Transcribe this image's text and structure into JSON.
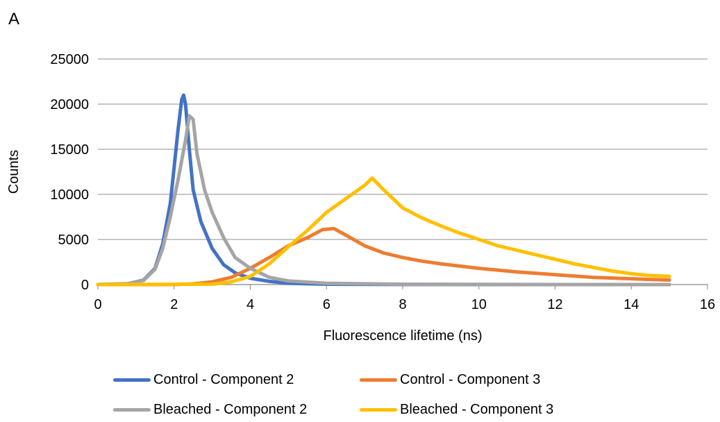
{
  "panel_label": "A",
  "chart_data": {
    "type": "line",
    "title": "",
    "xlabel": "Fluorescence lifetime (ns)",
    "ylabel": "Counts",
    "xlim": [
      0,
      16
    ],
    "ylim": [
      0,
      25000
    ],
    "xticks": [
      0,
      2,
      4,
      6,
      8,
      10,
      12,
      14,
      16
    ],
    "yticks": [
      0,
      5000,
      10000,
      15000,
      20000,
      25000
    ],
    "grid": "horizontal",
    "legend_position": "bottom",
    "series": [
      {
        "name": "Control - Component 2",
        "color": "#4472C4",
        "points": [
          [
            0,
            0
          ],
          [
            0.8,
            100
          ],
          [
            1.2,
            500
          ],
          [
            1.5,
            1800
          ],
          [
            1.7,
            4500
          ],
          [
            1.9,
            9000
          ],
          [
            2.0,
            13000
          ],
          [
            2.1,
            17000
          ],
          [
            2.2,
            20500
          ],
          [
            2.25,
            21000
          ],
          [
            2.3,
            20000
          ],
          [
            2.4,
            15000
          ],
          [
            2.5,
            10500
          ],
          [
            2.7,
            7000
          ],
          [
            3.0,
            4000
          ],
          [
            3.3,
            2200
          ],
          [
            3.6,
            1300
          ],
          [
            4.0,
            700
          ],
          [
            4.5,
            350
          ],
          [
            5.0,
            150
          ],
          [
            6.0,
            40
          ],
          [
            8.0,
            10
          ],
          [
            15.0,
            0
          ]
        ]
      },
      {
        "name": "Control - Component 3",
        "color": "#ED7D31",
        "points": [
          [
            0,
            0
          ],
          [
            2.0,
            0
          ],
          [
            2.5,
            80
          ],
          [
            3.0,
            300
          ],
          [
            3.5,
            800
          ],
          [
            4.0,
            1800
          ],
          [
            4.5,
            3000
          ],
          [
            5.0,
            4300
          ],
          [
            5.5,
            5200
          ],
          [
            5.9,
            6100
          ],
          [
            6.2,
            6200
          ],
          [
            6.5,
            5500
          ],
          [
            7.0,
            4300
          ],
          [
            7.5,
            3500
          ],
          [
            8.0,
            3000
          ],
          [
            8.5,
            2600
          ],
          [
            9.0,
            2300
          ],
          [
            10.0,
            1800
          ],
          [
            11.0,
            1400
          ],
          [
            12.0,
            1100
          ],
          [
            13.0,
            800
          ],
          [
            14.0,
            650
          ],
          [
            15.0,
            500
          ]
        ]
      },
      {
        "name": "Bleached - Component 2",
        "color": "#A5A5A5",
        "points": [
          [
            0,
            0
          ],
          [
            0.8,
            80
          ],
          [
            1.2,
            450
          ],
          [
            1.5,
            1700
          ],
          [
            1.7,
            4000
          ],
          [
            1.9,
            7500
          ],
          [
            2.1,
            11500
          ],
          [
            2.3,
            16000
          ],
          [
            2.4,
            18700
          ],
          [
            2.5,
            18300
          ],
          [
            2.6,
            14500
          ],
          [
            2.8,
            10500
          ],
          [
            3.0,
            8000
          ],
          [
            3.3,
            5200
          ],
          [
            3.6,
            3000
          ],
          [
            4.0,
            1800
          ],
          [
            4.5,
            800
          ],
          [
            5.0,
            400
          ],
          [
            6.0,
            150
          ],
          [
            8.0,
            40
          ],
          [
            10.0,
            15
          ],
          [
            15.0,
            0
          ]
        ]
      },
      {
        "name": "Bleached - Component 3",
        "color": "#FFC000",
        "points": [
          [
            0,
            0
          ],
          [
            3.0,
            50
          ],
          [
            3.5,
            300
          ],
          [
            4.0,
            900
          ],
          [
            4.5,
            2300
          ],
          [
            5.0,
            4200
          ],
          [
            5.5,
            6000
          ],
          [
            6.0,
            8000
          ],
          [
            6.5,
            9500
          ],
          [
            7.0,
            11000
          ],
          [
            7.2,
            11800
          ],
          [
            7.5,
            10500
          ],
          [
            8.0,
            8500
          ],
          [
            8.5,
            7400
          ],
          [
            9.0,
            6500
          ],
          [
            9.5,
            5700
          ],
          [
            10.0,
            5000
          ],
          [
            10.5,
            4300
          ],
          [
            11.0,
            3800
          ],
          [
            11.5,
            3300
          ],
          [
            12.0,
            2800
          ],
          [
            12.5,
            2300
          ],
          [
            13.0,
            1900
          ],
          [
            13.5,
            1500
          ],
          [
            14.0,
            1200
          ],
          [
            14.5,
            1000
          ],
          [
            15.0,
            900
          ]
        ]
      }
    ]
  }
}
